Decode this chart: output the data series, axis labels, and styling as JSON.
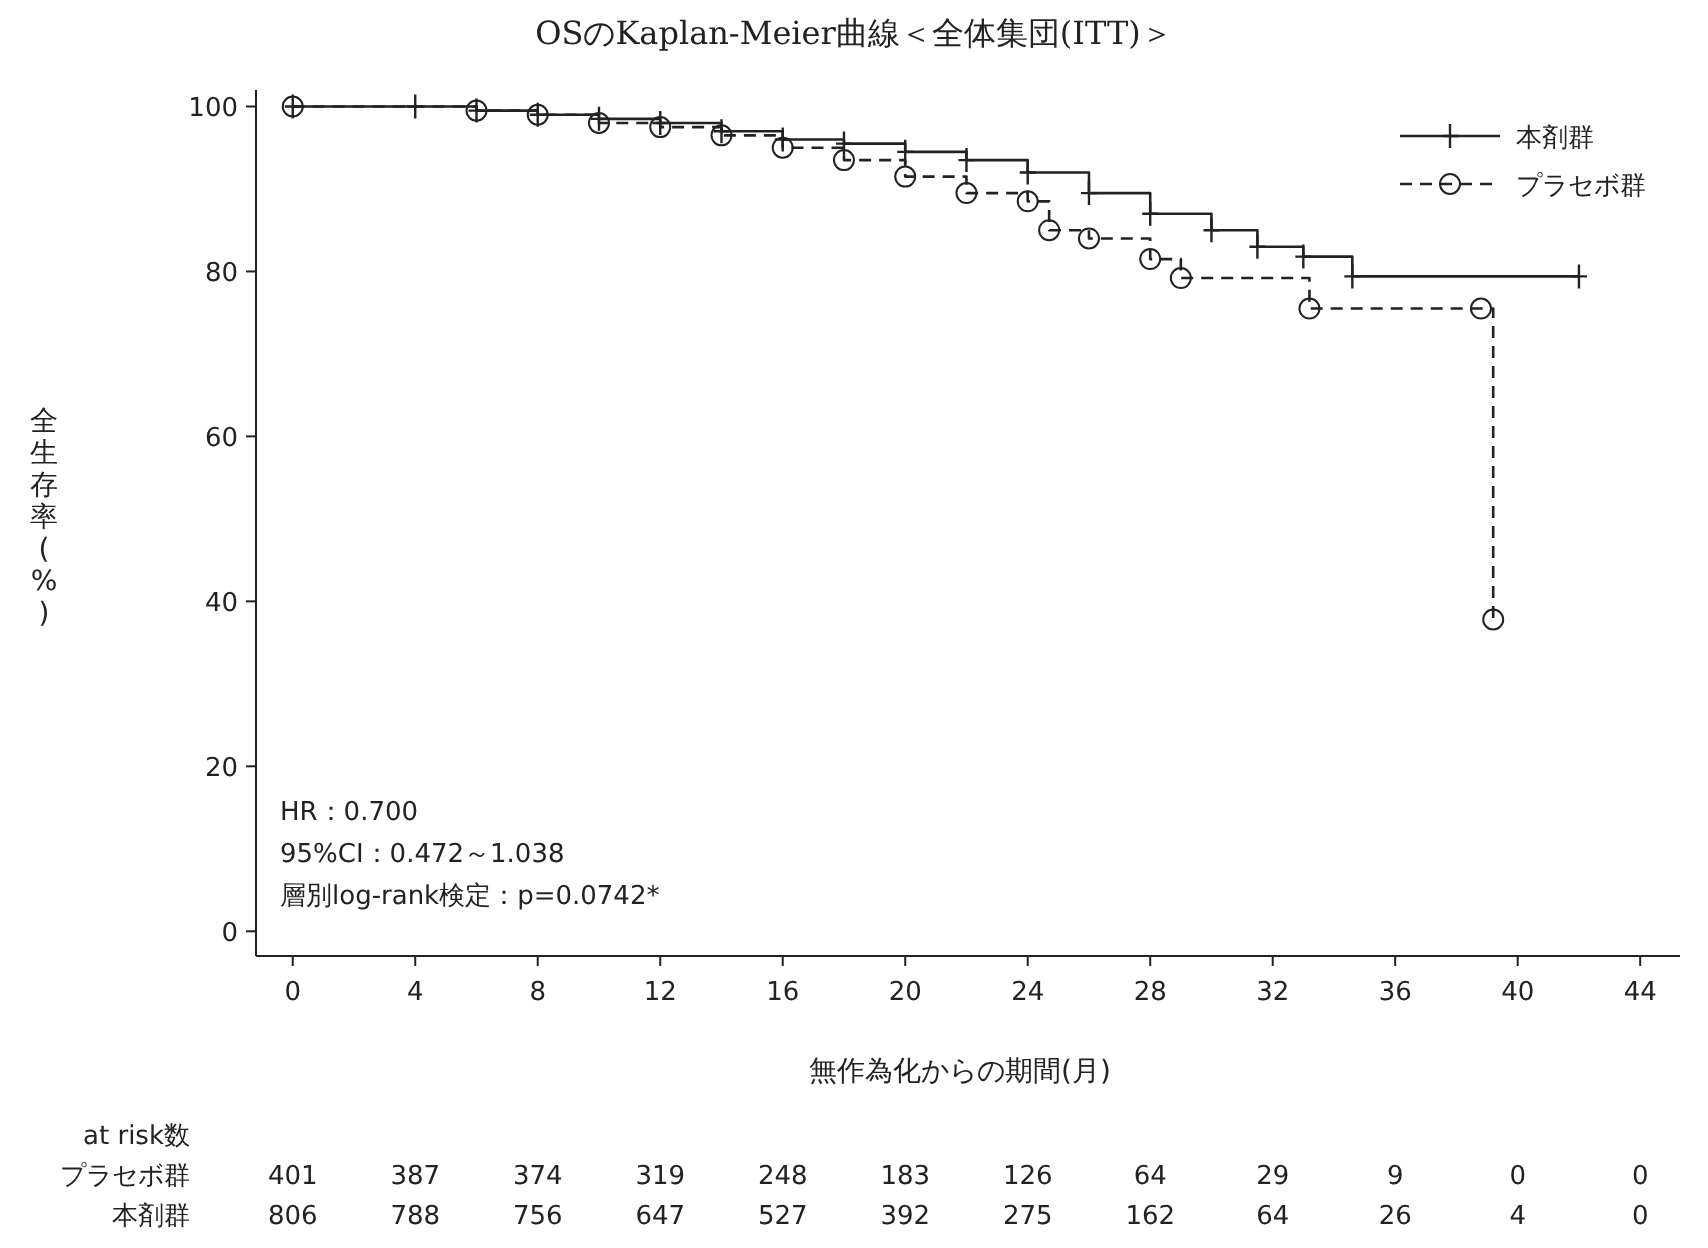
{
  "chart_data": {
    "type": "step",
    "title": "OSのKaplan-Meier曲線＜全体集団(ITT)＞",
    "xlabel": "無作為化からの期間(月)",
    "ylabel": "全生存率(%)",
    "xlim": [
      -1.2,
      45.3
    ],
    "ylim": [
      -3,
      102
    ],
    "xticks": [
      0,
      4,
      8,
      12,
      16,
      20,
      24,
      28,
      32,
      36,
      40,
      44
    ],
    "yticks": [
      0,
      20,
      40,
      60,
      80,
      100
    ],
    "grid": false,
    "legend": "top right",
    "series": [
      {
        "name": "本剤群",
        "color": "#222222",
        "marker": "cross",
        "line_style": "solid",
        "x": [
          0,
          4,
          6,
          8,
          10,
          12,
          14,
          16,
          18,
          20,
          22,
          24,
          26,
          28,
          30,
          31.5,
          33,
          34.6,
          42
        ],
        "values": [
          100,
          100,
          99.5,
          99,
          98.5,
          98,
          97,
          96,
          95.5,
          94.5,
          93.5,
          92,
          89.5,
          87,
          85,
          83,
          81.8,
          79.4,
          79.4
        ]
      },
      {
        "name": "プラセボ群",
        "color": "#222222",
        "marker": "circle",
        "line_style": "dashed",
        "x": [
          0,
          6,
          8,
          10,
          12,
          14,
          16,
          18,
          20,
          22,
          24,
          24.7,
          26,
          28,
          29,
          33.2,
          38.8,
          39.2
        ],
        "values": [
          100,
          99.5,
          99,
          98,
          97.5,
          96.5,
          95,
          93.5,
          91.5,
          89.5,
          88.5,
          85,
          84,
          81.5,
          79.2,
          75.5,
          75.5,
          37.8
        ]
      }
    ],
    "annotations": [
      "HR：0.700",
      "95%CI：0.472～1.038",
      "層別log-rank検定：p=0.0742*",
      "at risk数",
      "プラセボ群",
      "401",
      "387",
      "374",
      "319",
      "248",
      "183",
      "126",
      "64",
      "29",
      "9",
      "0",
      "0",
      "本剤群",
      "806",
      "788",
      "756",
      "647",
      "527",
      "392",
      "275",
      "162",
      "64",
      "26",
      "4",
      "0"
    ]
  }
}
